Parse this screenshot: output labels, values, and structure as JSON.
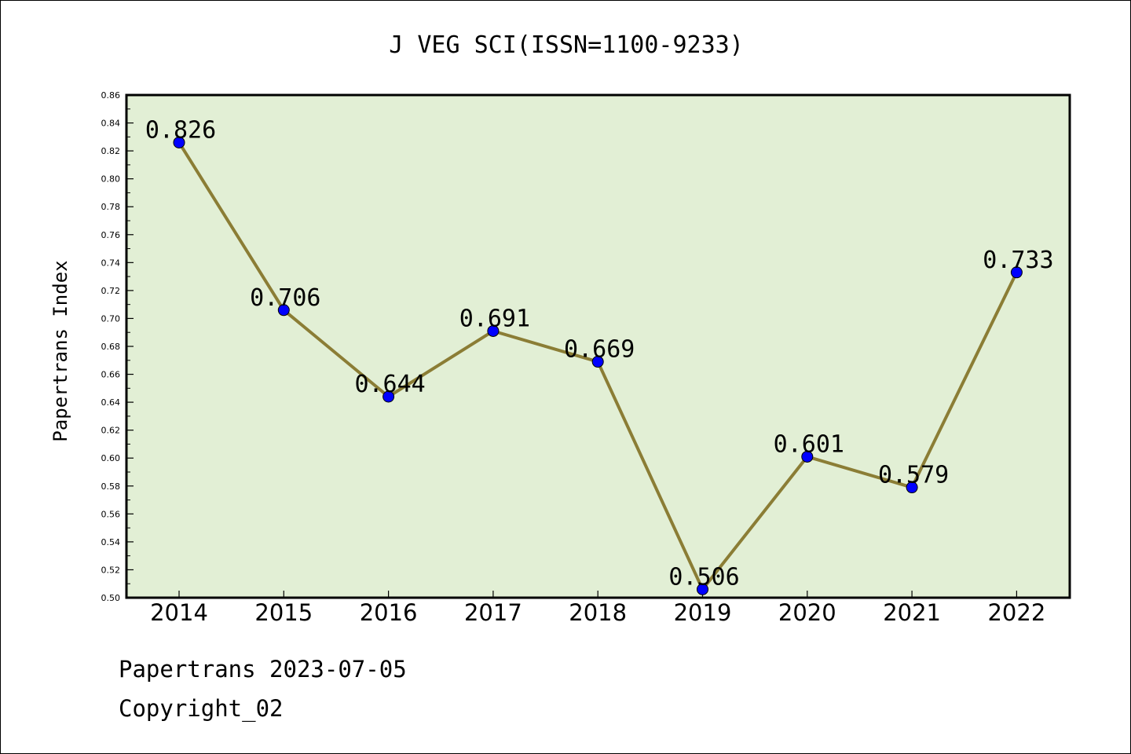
{
  "chart_data": {
    "type": "line",
    "title": "J VEG SCI(ISSN=1100-9233)",
    "xlabel": "",
    "ylabel": "Papertrans Index",
    "categories": [
      "2014",
      "2015",
      "2016",
      "2017",
      "2018",
      "2019",
      "2020",
      "2021",
      "2022"
    ],
    "series": [
      {
        "values": [
          0.826,
          0.706,
          0.644,
          0.691,
          0.669,
          0.506,
          0.601,
          0.579,
          0.733
        ]
      }
    ],
    "data_labels": [
      "0.826",
      "0.706",
      "0.644",
      "0.691",
      "0.669",
      "0.506",
      "0.601",
      "0.579",
      "0.733"
    ],
    "ylim": [
      0.5,
      0.86
    ],
    "yticks": [
      "0.50",
      "0.52",
      "0.54",
      "0.56",
      "0.58",
      "0.60",
      "0.62",
      "0.64",
      "0.66",
      "0.68",
      "0.70",
      "0.72",
      "0.74",
      "0.76",
      "0.78",
      "0.80",
      "0.82",
      "0.84",
      "0.86"
    ],
    "grid": false,
    "legend": "none",
    "colors": {
      "plot_background": "#e2efd5",
      "line": "#8b7d35",
      "marker": "#0000ff"
    }
  },
  "footer": {
    "line1": "Papertrans 2023-07-05",
    "line2": "Copyright_02"
  }
}
